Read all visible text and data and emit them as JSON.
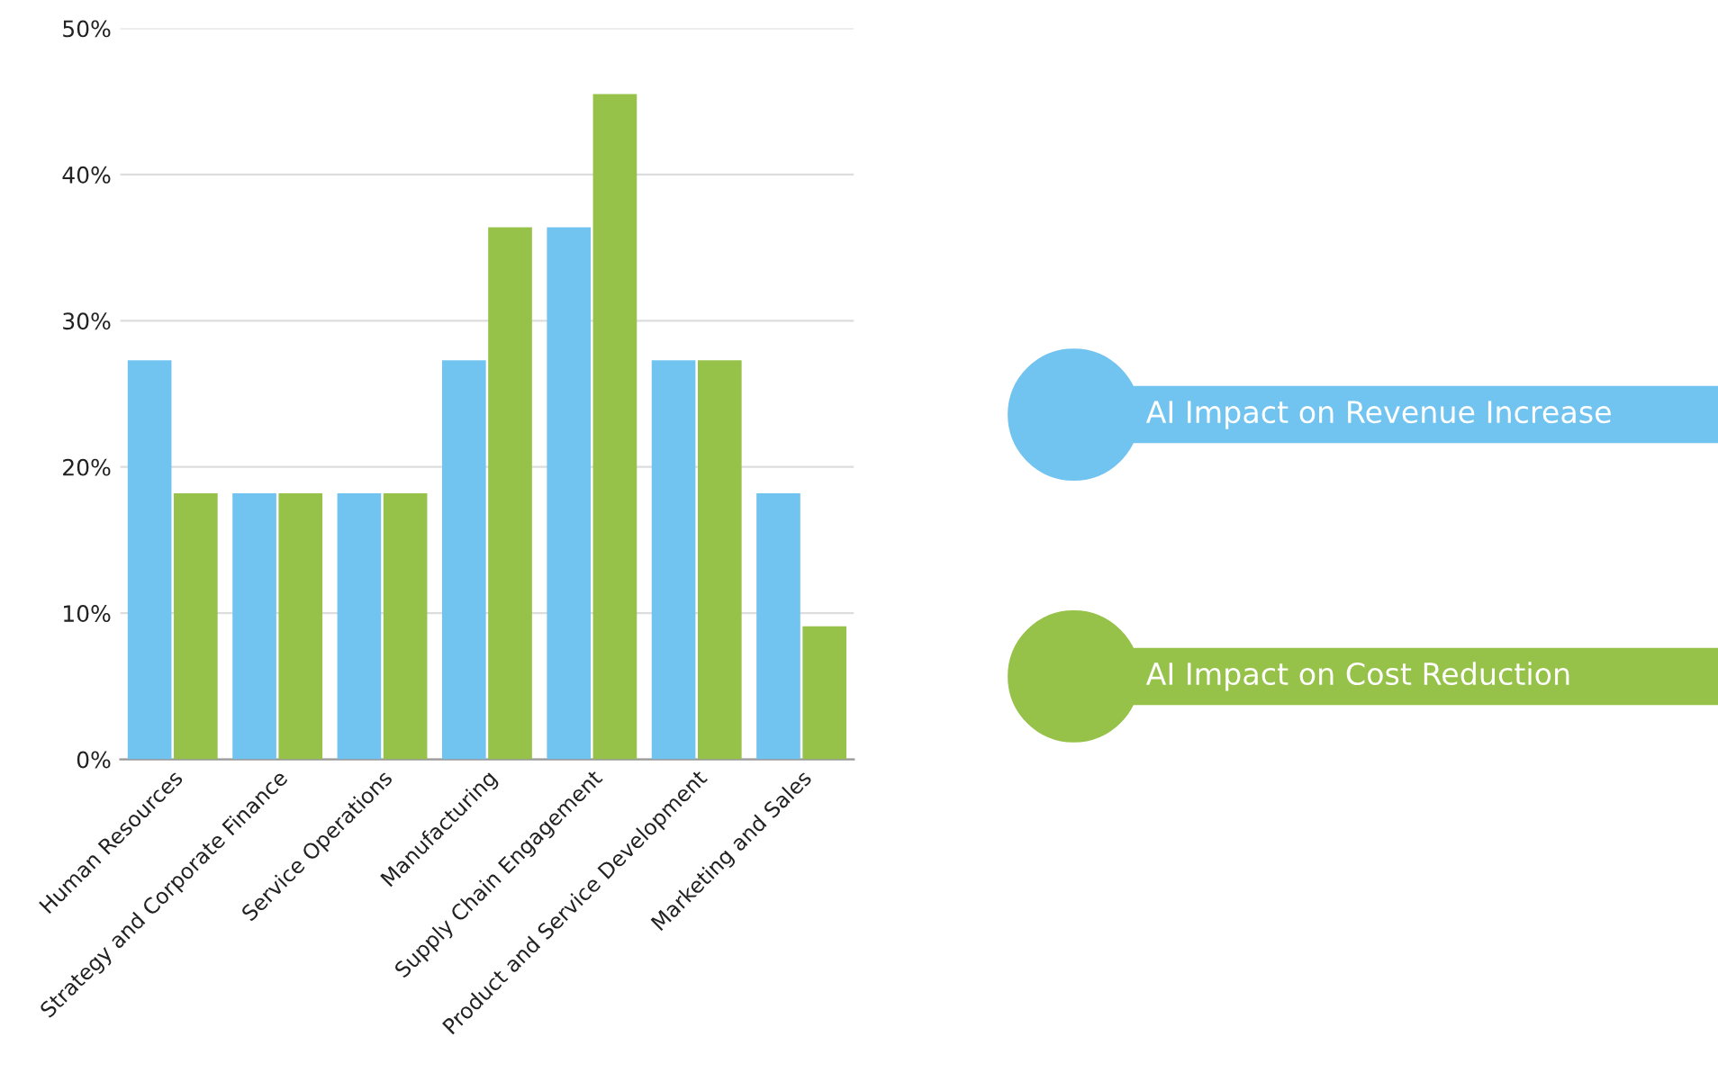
{
  "chart_data": {
    "type": "bar",
    "categories": [
      "Human Resources",
      "Strategy and Corporate Finance",
      "Service Operations",
      "Manufacturing",
      "Supply Chain Engagement",
      "Product and Service Development",
      "Marketing and Sales"
    ],
    "series": [
      {
        "name": "AI Impact on Revenue Increase",
        "color": "#72c4f0",
        "values": [
          27.3,
          18.2,
          18.2,
          27.3,
          36.4,
          27.3,
          18.2
        ]
      },
      {
        "name": "AI Impact on Cost Reduction",
        "color": "#97c24a",
        "values": [
          18.2,
          18.2,
          18.2,
          36.4,
          45.5,
          27.3,
          9.1
        ]
      }
    ],
    "ylim": [
      0,
      50
    ],
    "yticks": [
      {
        "value": 0,
        "label": "0%"
      },
      {
        "value": 10,
        "label": "10%"
      },
      {
        "value": 20,
        "label": "20%"
      },
      {
        "value": 30,
        "label": "30%"
      },
      {
        "value": 40,
        "label": "40%"
      },
      {
        "value": 50,
        "label": "50%"
      }
    ],
    "grid": "y",
    "legend": "right"
  }
}
